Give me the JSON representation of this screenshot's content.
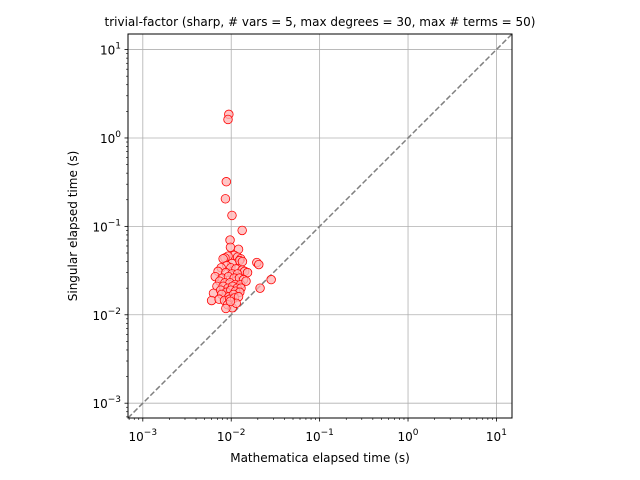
{
  "chart_data": {
    "type": "scatter",
    "title": "trivial-factor (sharp, # vars = 5, max degrees = 30, max # terms = 50)",
    "xlabel": "Mathematica elapsed time (s)",
    "ylabel": "Singular elapsed time (s)",
    "xscale": "log",
    "yscale": "log",
    "xlim": [
      0.00068,
      15
    ],
    "ylim": [
      0.00068,
      15
    ],
    "grid": true,
    "x_ticks": [
      {
        "value": 0.001,
        "base": "10",
        "exp": "−3"
      },
      {
        "value": 0.01,
        "base": "10",
        "exp": "−2"
      },
      {
        "value": 0.1,
        "base": "10",
        "exp": "−1"
      },
      {
        "value": 1,
        "base": "10",
        "exp": "0"
      },
      {
        "value": 10,
        "base": "10",
        "exp": "1"
      }
    ],
    "y_ticks": [
      {
        "value": 0.001,
        "base": "10",
        "exp": "−3"
      },
      {
        "value": 0.01,
        "base": "10",
        "exp": "−2"
      },
      {
        "value": 0.1,
        "base": "10",
        "exp": "−1"
      },
      {
        "value": 1,
        "base": "10",
        "exp": "0"
      },
      {
        "value": 10,
        "base": "10",
        "exp": "1"
      }
    ],
    "reference_line": {
      "style": "dashed",
      "color": "#808080",
      "from": [
        0.00068,
        0.00068
      ],
      "to": [
        15,
        15
      ]
    },
    "marker": {
      "shape": "circle",
      "face_color": "#ffb3b3",
      "edge_color": "#ff0000"
    },
    "points": [
      {
        "x": 0.0094,
        "y": 1.85
      },
      {
        "x": 0.0092,
        "y": 1.62
      },
      {
        "x": 0.0088,
        "y": 0.32
      },
      {
        "x": 0.0086,
        "y": 0.205
      },
      {
        "x": 0.0102,
        "y": 0.133
      },
      {
        "x": 0.0133,
        "y": 0.09
      },
      {
        "x": 0.0097,
        "y": 0.07
      },
      {
        "x": 0.0098,
        "y": 0.058
      },
      {
        "x": 0.0121,
        "y": 0.055
      },
      {
        "x": 0.0108,
        "y": 0.047
      },
      {
        "x": 0.0092,
        "y": 0.046
      },
      {
        "x": 0.0085,
        "y": 0.044
      },
      {
        "x": 0.0081,
        "y": 0.043
      },
      {
        "x": 0.0118,
        "y": 0.045
      },
      {
        "x": 0.0128,
        "y": 0.043
      },
      {
        "x": 0.0124,
        "y": 0.041
      },
      {
        "x": 0.0134,
        "y": 0.04
      },
      {
        "x": 0.0195,
        "y": 0.039
      },
      {
        "x": 0.0205,
        "y": 0.037
      },
      {
        "x": 0.0102,
        "y": 0.038
      },
      {
        "x": 0.0089,
        "y": 0.036
      },
      {
        "x": 0.0077,
        "y": 0.034
      },
      {
        "x": 0.0099,
        "y": 0.034
      },
      {
        "x": 0.0113,
        "y": 0.033
      },
      {
        "x": 0.0133,
        "y": 0.032
      },
      {
        "x": 0.0142,
        "y": 0.031
      },
      {
        "x": 0.0153,
        "y": 0.03
      },
      {
        "x": 0.0071,
        "y": 0.031
      },
      {
        "x": 0.0087,
        "y": 0.03
      },
      {
        "x": 0.0102,
        "y": 0.029
      },
      {
        "x": 0.0118,
        "y": 0.029
      },
      {
        "x": 0.0066,
        "y": 0.027
      },
      {
        "x": 0.0079,
        "y": 0.026
      },
      {
        "x": 0.0093,
        "y": 0.027
      },
      {
        "x": 0.0108,
        "y": 0.026
      },
      {
        "x": 0.0124,
        "y": 0.026
      },
      {
        "x": 0.0138,
        "y": 0.025
      },
      {
        "x": 0.0283,
        "y": 0.025
      },
      {
        "x": 0.0074,
        "y": 0.024
      },
      {
        "x": 0.0085,
        "y": 0.023
      },
      {
        "x": 0.0097,
        "y": 0.023
      },
      {
        "x": 0.0111,
        "y": 0.022
      },
      {
        "x": 0.0128,
        "y": 0.022
      },
      {
        "x": 0.0147,
        "y": 0.024
      },
      {
        "x": 0.0069,
        "y": 0.021
      },
      {
        "x": 0.0081,
        "y": 0.021
      },
      {
        "x": 0.0092,
        "y": 0.02
      },
      {
        "x": 0.0104,
        "y": 0.021
      },
      {
        "x": 0.0117,
        "y": 0.02
      },
      {
        "x": 0.0129,
        "y": 0.02
      },
      {
        "x": 0.0212,
        "y": 0.02
      },
      {
        "x": 0.0063,
        "y": 0.0175
      },
      {
        "x": 0.0076,
        "y": 0.019
      },
      {
        "x": 0.0088,
        "y": 0.018
      },
      {
        "x": 0.0099,
        "y": 0.019
      },
      {
        "x": 0.0112,
        "y": 0.0185
      },
      {
        "x": 0.0125,
        "y": 0.018
      },
      {
        "x": 0.0078,
        "y": 0.017
      },
      {
        "x": 0.0094,
        "y": 0.016
      },
      {
        "x": 0.0106,
        "y": 0.017
      },
      {
        "x": 0.006,
        "y": 0.0145
      },
      {
        "x": 0.0073,
        "y": 0.015
      },
      {
        "x": 0.0084,
        "y": 0.0145
      },
      {
        "x": 0.0096,
        "y": 0.015
      },
      {
        "x": 0.0109,
        "y": 0.0155
      },
      {
        "x": 0.0121,
        "y": 0.016
      },
      {
        "x": 0.0091,
        "y": 0.013
      },
      {
        "x": 0.0103,
        "y": 0.012
      },
      {
        "x": 0.0087,
        "y": 0.0118
      },
      {
        "x": 0.0114,
        "y": 0.0135
      },
      {
        "x": 0.0098,
        "y": 0.0142
      }
    ]
  }
}
